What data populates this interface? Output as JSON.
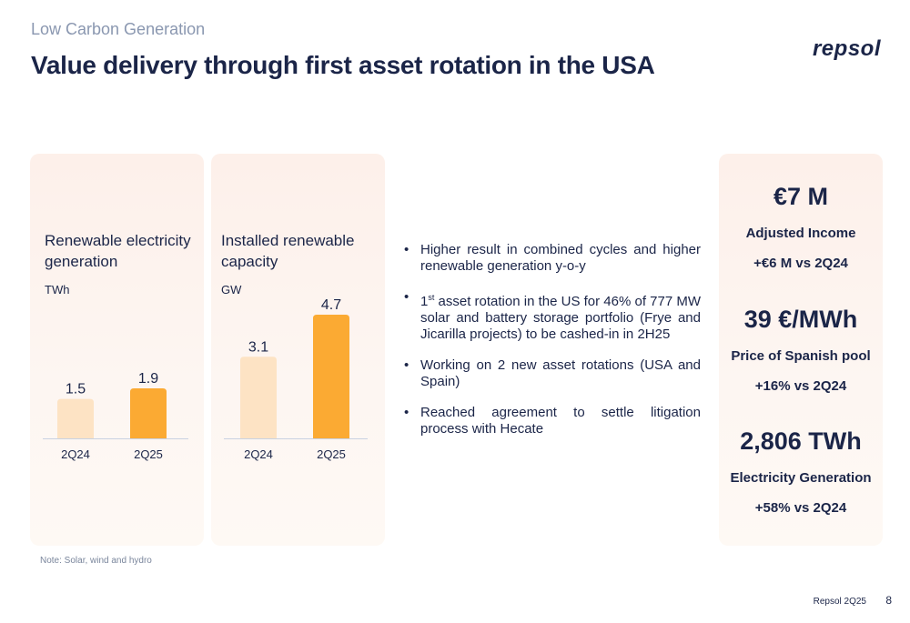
{
  "header": {
    "section": "Low Carbon Generation",
    "title": "Value delivery through first asset rotation in the USA",
    "logo": "repsol"
  },
  "colors": {
    "bar_light": "#fde3c4",
    "bar_dark": "#fbaa33",
    "navy": "#1b2548"
  },
  "chart_data": [
    {
      "type": "bar",
      "title": "Renewable electricity generation",
      "ylabel": "TWh",
      "categories": [
        "2Q24",
        "2Q25"
      ],
      "values": [
        1.5,
        1.9
      ],
      "value_labels": [
        "1.5",
        "1.9"
      ],
      "ylim": [
        0,
        4.7
      ]
    },
    {
      "type": "bar",
      "title": "Installed renewable capacity",
      "ylabel": "GW",
      "categories": [
        "2Q24",
        "2Q25"
      ],
      "values": [
        3.1,
        4.7
      ],
      "value_labels": [
        "3.1",
        "4.7"
      ],
      "ylim": [
        0,
        4.7
      ]
    }
  ],
  "bullets": {
    "b1": "Higher result in combined cycles and higher renewable generation y-o-y",
    "b2_num": "1",
    "b2_sup": "st",
    "b2_text": " asset rotation in the US for 46% of  777 MW solar and battery storage portfolio (Frye and Jicarilla projects) to be cashed-in in 2H25",
    "b3": "Working on 2 new asset rotations (USA and Spain)",
    "b4": "Reached agreement to settle litigation process with Hecate"
  },
  "kpis": [
    {
      "value": "€7 M",
      "label": "Adjusted Income",
      "delta": "+€6 M vs 2Q24"
    },
    {
      "value": "39 €/MWh",
      "label": "Price of Spanish pool",
      "delta": "+16% vs 2Q24"
    },
    {
      "value": "2,806 TWh",
      "label": "Electricity Generation",
      "delta": "+58% vs 2Q24"
    }
  ],
  "note": "Note: Solar, wind and hydro",
  "footer": {
    "text": "Repsol 2Q25",
    "page": "8"
  }
}
